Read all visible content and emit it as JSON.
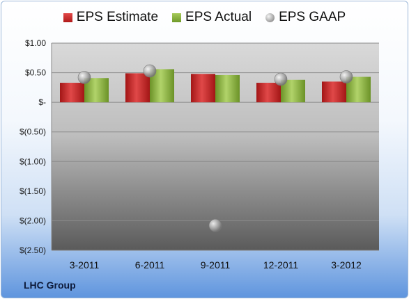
{
  "company": "LHC Group",
  "chart_data": {
    "type": "bar",
    "categories": [
      "3-2011",
      "6-2011",
      "9-2011",
      "12-2011",
      "3-2012"
    ],
    "series": [
      {
        "name": "EPS Estimate",
        "kind": "bar",
        "color": "#c62828",
        "values": [
          0.33,
          0.49,
          0.48,
          0.33,
          0.35
        ]
      },
      {
        "name": "EPS Actual",
        "kind": "bar",
        "color": "#8bb43f",
        "values": [
          0.41,
          0.56,
          0.46,
          0.38,
          0.43
        ]
      },
      {
        "name": "EPS GAAP",
        "kind": "marker",
        "color": "#a9a9a9",
        "values": [
          0.42,
          0.53,
          -2.08,
          0.39,
          0.43
        ]
      }
    ],
    "yticks": [
      1.0,
      0.5,
      0.0,
      -0.5,
      -1.0,
      -1.5,
      -2.0,
      -2.5
    ],
    "ytick_labels": [
      "$1.00",
      "$0.50",
      "$-",
      "$(0.50)",
      "$(1.00)",
      "$(1.50)",
      "$(2.00)",
      "$(2.50)"
    ],
    "ylim": [
      -2.5,
      1.0
    ],
    "grid": true,
    "legend_position": "top"
  }
}
